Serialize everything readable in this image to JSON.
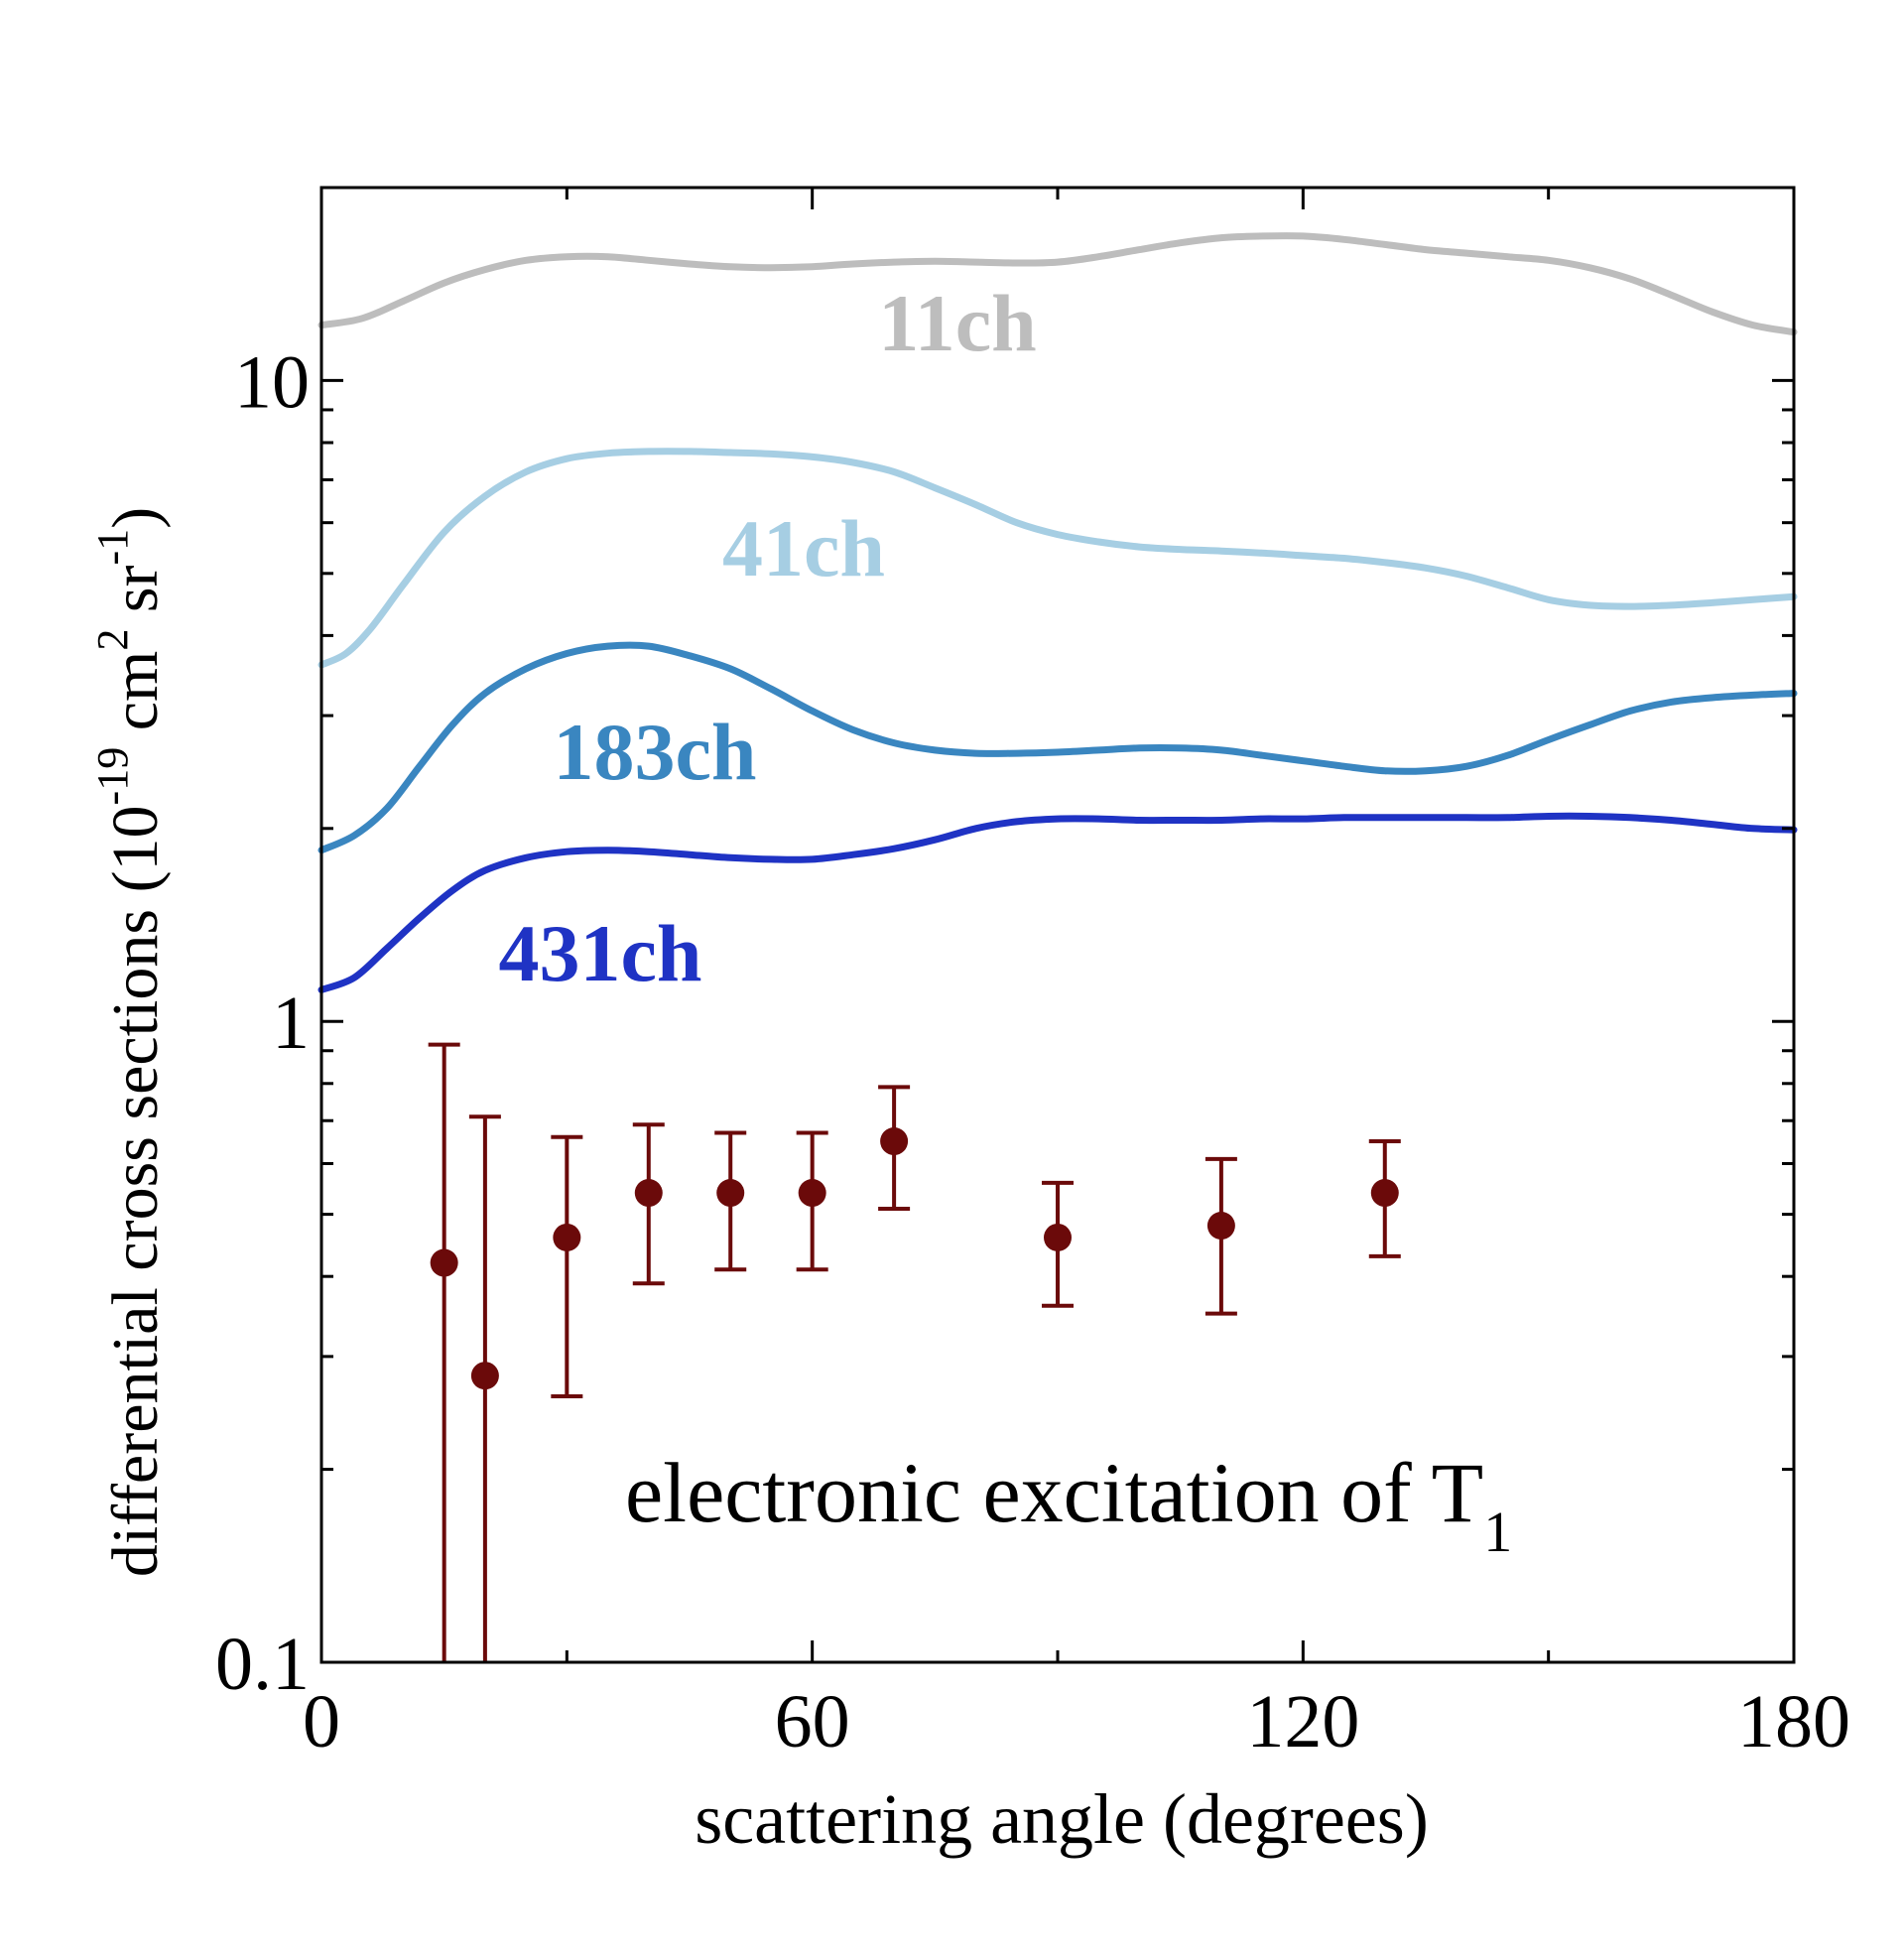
{
  "chart_data": {
    "type": "line",
    "xlabel": "scattering angle (degrees)",
    "ylabel": {
      "prefix": "differential cross sections (10",
      "exp1": "-19",
      "mid": " cm",
      "exp2": "2",
      "mid2": " sr",
      "exp3": "-1",
      "suffix": ")"
    },
    "annotation": {
      "main": "electronic excitation of T",
      "sub": "1"
    },
    "xlim": [
      0,
      180
    ],
    "ylim": [
      0.1,
      20
    ],
    "yscale": "log",
    "xticks": [
      {
        "value": 0,
        "label": "0"
      },
      {
        "value": 60,
        "label": "60"
      },
      {
        "value": 120,
        "label": "120"
      },
      {
        "value": 180,
        "label": "180"
      }
    ],
    "yticks": [
      {
        "value": 0.1,
        "label": "0.1"
      },
      {
        "value": 1,
        "label": "1"
      },
      {
        "value": 10,
        "label": "10"
      }
    ],
    "series": [
      {
        "name": "11ch",
        "color": "#bdbdbd",
        "x": [
          0,
          5,
          10,
          15,
          20,
          25,
          30,
          35,
          40,
          45,
          50,
          55,
          60,
          65,
          70,
          75,
          80,
          85,
          90,
          95,
          100,
          105,
          110,
          115,
          120,
          125,
          130,
          135,
          140,
          145,
          150,
          155,
          160,
          165,
          170,
          175,
          180
        ],
        "y": [
          12.2,
          12.5,
          13.3,
          14.2,
          14.9,
          15.4,
          15.6,
          15.6,
          15.4,
          15.2,
          15.05,
          15.0,
          15.05,
          15.2,
          15.3,
          15.35,
          15.3,
          15.25,
          15.3,
          15.6,
          16.0,
          16.4,
          16.7,
          16.8,
          16.8,
          16.6,
          16.3,
          16.0,
          15.8,
          15.6,
          15.4,
          15.0,
          14.4,
          13.6,
          12.8,
          12.2,
          11.9
        ]
      },
      {
        "name": "41ch",
        "color": "#a6cee3",
        "x": [
          0,
          3,
          6,
          10,
          15,
          20,
          25,
          30,
          35,
          40,
          45,
          50,
          55,
          60,
          65,
          70,
          75,
          80,
          85,
          90,
          95,
          100,
          105,
          110,
          115,
          120,
          125,
          130,
          135,
          140,
          145,
          150,
          155,
          160,
          165,
          170,
          175,
          180
        ],
        "y": [
          3.6,
          3.75,
          4.1,
          4.8,
          5.8,
          6.6,
          7.2,
          7.55,
          7.7,
          7.75,
          7.75,
          7.72,
          7.68,
          7.6,
          7.45,
          7.2,
          6.8,
          6.4,
          6.0,
          5.75,
          5.6,
          5.5,
          5.45,
          5.42,
          5.38,
          5.33,
          5.28,
          5.2,
          5.1,
          4.95,
          4.75,
          4.55,
          4.46,
          4.44,
          4.46,
          4.5,
          4.55,
          4.6
        ]
      },
      {
        "name": "183ch",
        "color": "#3a86c0",
        "x": [
          0,
          4,
          8,
          12,
          16,
          20,
          25,
          30,
          35,
          40,
          45,
          50,
          55,
          60,
          65,
          70,
          75,
          80,
          85,
          90,
          95,
          100,
          105,
          110,
          115,
          120,
          125,
          130,
          135,
          140,
          145,
          150,
          155,
          160,
          165,
          170,
          175,
          180
        ],
        "y": [
          1.85,
          1.95,
          2.15,
          2.5,
          2.9,
          3.25,
          3.55,
          3.75,
          3.85,
          3.85,
          3.72,
          3.55,
          3.3,
          3.05,
          2.85,
          2.72,
          2.65,
          2.62,
          2.62,
          2.63,
          2.65,
          2.67,
          2.67,
          2.65,
          2.6,
          2.55,
          2.5,
          2.46,
          2.46,
          2.5,
          2.6,
          2.75,
          2.9,
          3.05,
          3.15,
          3.2,
          3.23,
          3.25
        ]
      },
      {
        "name": "431ch",
        "color": "#1f33c4",
        "x": [
          0,
          4,
          8,
          12,
          16,
          20,
          25,
          30,
          35,
          40,
          45,
          50,
          55,
          60,
          65,
          70,
          75,
          80,
          85,
          90,
          95,
          100,
          105,
          110,
          115,
          120,
          125,
          130,
          135,
          140,
          145,
          150,
          155,
          160,
          165,
          170,
          175,
          180
        ],
        "y": [
          1.12,
          1.17,
          1.3,
          1.45,
          1.6,
          1.72,
          1.8,
          1.84,
          1.85,
          1.84,
          1.82,
          1.8,
          1.79,
          1.79,
          1.82,
          1.86,
          1.92,
          2.0,
          2.05,
          2.07,
          2.07,
          2.06,
          2.06,
          2.06,
          2.07,
          2.07,
          2.08,
          2.08,
          2.08,
          2.08,
          2.08,
          2.09,
          2.09,
          2.08,
          2.06,
          2.03,
          2.0,
          1.99
        ]
      }
    ],
    "experiment": {
      "color": "#6b0a0a",
      "points": [
        {
          "x": 15,
          "y": 0.42,
          "lo": 0.1,
          "hi": 0.92
        },
        {
          "x": 20,
          "y": 0.28,
          "lo": 0.1,
          "hi": 0.71
        },
        {
          "x": 30,
          "y": 0.46,
          "lo": 0.26,
          "hi": 0.66
        },
        {
          "x": 40,
          "y": 0.54,
          "lo": 0.39,
          "hi": 0.69
        },
        {
          "x": 50,
          "y": 0.54,
          "lo": 0.41,
          "hi": 0.67
        },
        {
          "x": 60,
          "y": 0.54,
          "lo": 0.41,
          "hi": 0.67
        },
        {
          "x": 70,
          "y": 0.65,
          "lo": 0.51,
          "hi": 0.79
        },
        {
          "x": 90,
          "y": 0.46,
          "lo": 0.36,
          "hi": 0.56
        },
        {
          "x": 110,
          "y": 0.48,
          "lo": 0.35,
          "hi": 0.61
        },
        {
          "x": 130,
          "y": 0.54,
          "lo": 0.43,
          "hi": 0.65
        }
      ]
    },
    "legend": "inline labels near curves",
    "grid": false
  }
}
